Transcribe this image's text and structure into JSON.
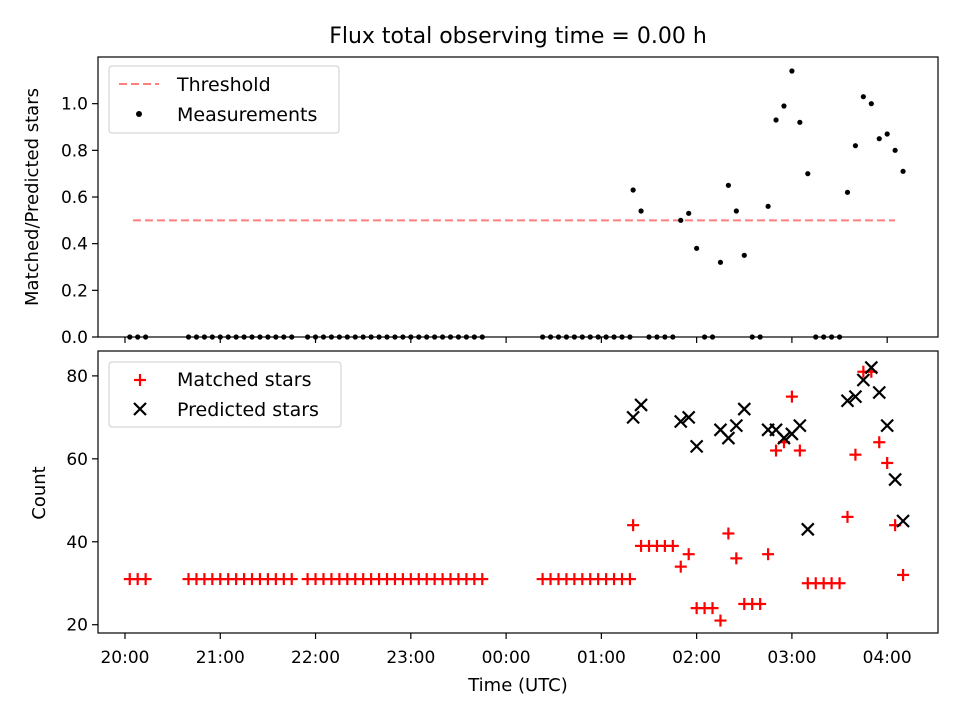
{
  "title": "Flux total observing time = 0.00 h",
  "colors": {
    "threshold": "#ff7f7f",
    "measurements": "#000000",
    "matched": "#ff0000",
    "predicted": "#000000"
  },
  "chart_data": [
    {
      "type": "scatter",
      "ylabel": "Matched/Predicted stars",
      "xlim": [
        "19:43",
        "04:32"
      ],
      "ylim": [
        0,
        1.2
      ],
      "yticks": [
        "0.0",
        "0.2",
        "0.4",
        "0.6",
        "0.8",
        "1.0"
      ],
      "legend_position": "upper-left",
      "threshold": {
        "name": "Threshold",
        "value": 0.5,
        "x_range": [
          "20:05",
          "04:05"
        ]
      },
      "series": [
        {
          "name": "Measurements",
          "marker": "dot",
          "x": [
            "20:03",
            "20:08",
            "20:13",
            "20:40",
            "20:45",
            "20:50",
            "20:55",
            "21:00",
            "21:05",
            "21:10",
            "21:15",
            "21:20",
            "21:25",
            "21:30",
            "21:35",
            "21:40",
            "21:45",
            "21:55",
            "22:00",
            "22:05",
            "22:10",
            "22:15",
            "22:20",
            "22:25",
            "22:30",
            "22:35",
            "22:40",
            "22:45",
            "22:50",
            "22:55",
            "23:00",
            "23:05",
            "23:10",
            "23:15",
            "23:20",
            "23:25",
            "23:30",
            "23:35",
            "23:40",
            "23:45",
            "00:23",
            "00:28",
            "00:33",
            "00:38",
            "00:43",
            "00:48",
            "00:53",
            "00:58",
            "01:03",
            "01:08",
            "01:13",
            "01:18",
            "01:20",
            "01:25",
            "01:30",
            "01:35",
            "01:40",
            "01:45",
            "01:50",
            "01:55",
            "02:00",
            "02:05",
            "02:10",
            "02:15",
            "02:20",
            "02:25",
            "02:30",
            "02:35",
            "02:40",
            "02:45",
            "02:50",
            "02:55",
            "03:00",
            "03:05",
            "03:10",
            "03:15",
            "03:20",
            "03:25",
            "03:30",
            "03:35",
            "03:40",
            "03:45",
            "03:50",
            "03:55",
            "04:00",
            "04:05",
            "04:10"
          ],
          "y": [
            0,
            0,
            0,
            0,
            0,
            0,
            0,
            0,
            0,
            0,
            0,
            0,
            0,
            0,
            0,
            0,
            0,
            0,
            0,
            0,
            0,
            0,
            0,
            0,
            0,
            0,
            0,
            0,
            0,
            0,
            0,
            0,
            0,
            0,
            0,
            0,
            0,
            0,
            0,
            0,
            0,
            0,
            0,
            0,
            0,
            0,
            0,
            0,
            0,
            0,
            0,
            0,
            0.63,
            0.54,
            0,
            0,
            0,
            0,
            0.5,
            0.53,
            0.38,
            0,
            0,
            0.32,
            0.65,
            0.54,
            0.35,
            0,
            0,
            0.56,
            0.93,
            0.99,
            1.14,
            0.92,
            0.7,
            0,
            0,
            0,
            0,
            0.62,
            0.82,
            1.03,
            1.0,
            0.85,
            0.87,
            0.8,
            0.71
          ]
        }
      ]
    },
    {
      "type": "scatter",
      "ylabel": "Count",
      "xlabel": "Time (UTC)",
      "xlim": [
        "19:43",
        "04:32"
      ],
      "ylim": [
        18,
        86
      ],
      "yticks": [
        "20",
        "40",
        "60",
        "80"
      ],
      "xticks": [
        "20:00",
        "21:00",
        "22:00",
        "23:00",
        "00:00",
        "01:00",
        "02:00",
        "03:00",
        "04:00"
      ],
      "legend_position": "upper-left",
      "series": [
        {
          "name": "Matched stars",
          "marker": "plus",
          "x": [
            "20:03",
            "20:08",
            "20:13",
            "20:40",
            "20:45",
            "20:50",
            "20:55",
            "21:00",
            "21:05",
            "21:10",
            "21:15",
            "21:20",
            "21:25",
            "21:30",
            "21:35",
            "21:40",
            "21:45",
            "21:55",
            "22:00",
            "22:05",
            "22:10",
            "22:15",
            "22:20",
            "22:25",
            "22:30",
            "22:35",
            "22:40",
            "22:45",
            "22:50",
            "22:55",
            "23:00",
            "23:05",
            "23:10",
            "23:15",
            "23:20",
            "23:25",
            "23:30",
            "23:35",
            "23:40",
            "23:45",
            "00:23",
            "00:28",
            "00:33",
            "00:38",
            "00:43",
            "00:48",
            "00:53",
            "00:58",
            "01:03",
            "01:08",
            "01:13",
            "01:18",
            "01:20",
            "01:25",
            "01:30",
            "01:35",
            "01:40",
            "01:45",
            "01:50",
            "01:55",
            "02:00",
            "02:05",
            "02:10",
            "02:15",
            "02:20",
            "02:25",
            "02:30",
            "02:35",
            "02:40",
            "02:45",
            "02:50",
            "02:55",
            "03:00",
            "03:05",
            "03:10",
            "03:15",
            "03:20",
            "03:25",
            "03:30",
            "03:35",
            "03:40",
            "03:45",
            "03:50",
            "03:55",
            "04:00",
            "04:05",
            "04:10"
          ],
          "y": [
            31,
            31,
            31,
            31,
            31,
            31,
            31,
            31,
            31,
            31,
            31,
            31,
            31,
            31,
            31,
            31,
            31,
            31,
            31,
            31,
            31,
            31,
            31,
            31,
            31,
            31,
            31,
            31,
            31,
            31,
            31,
            31,
            31,
            31,
            31,
            31,
            31,
            31,
            31,
            31,
            31,
            31,
            31,
            31,
            31,
            31,
            31,
            31,
            31,
            31,
            31,
            31,
            44,
            39,
            39,
            39,
            39,
            39,
            34,
            37,
            24,
            24,
            24,
            21,
            42,
            36,
            25,
            25,
            25,
            37,
            62,
            64,
            75,
            62,
            30,
            30,
            30,
            30,
            30,
            46,
            61,
            81,
            81,
            64,
            59,
            44,
            32
          ]
        },
        {
          "name": "Predicted stars",
          "marker": "x",
          "x": [
            "01:20",
            "01:25",
            "01:50",
            "01:55",
            "02:00",
            "02:15",
            "02:20",
            "02:25",
            "02:30",
            "02:45",
            "02:50",
            "02:55",
            "03:00",
            "03:05",
            "03:10",
            "03:35",
            "03:40",
            "03:45",
            "03:50",
            "03:55",
            "04:00",
            "04:05",
            "04:10"
          ],
          "y": [
            70,
            73,
            69,
            70,
            63,
            67,
            65,
            68,
            72,
            67,
            67,
            65,
            66,
            68,
            43,
            74,
            75,
            79,
            82,
            76,
            68,
            55,
            45
          ]
        }
      ]
    }
  ]
}
